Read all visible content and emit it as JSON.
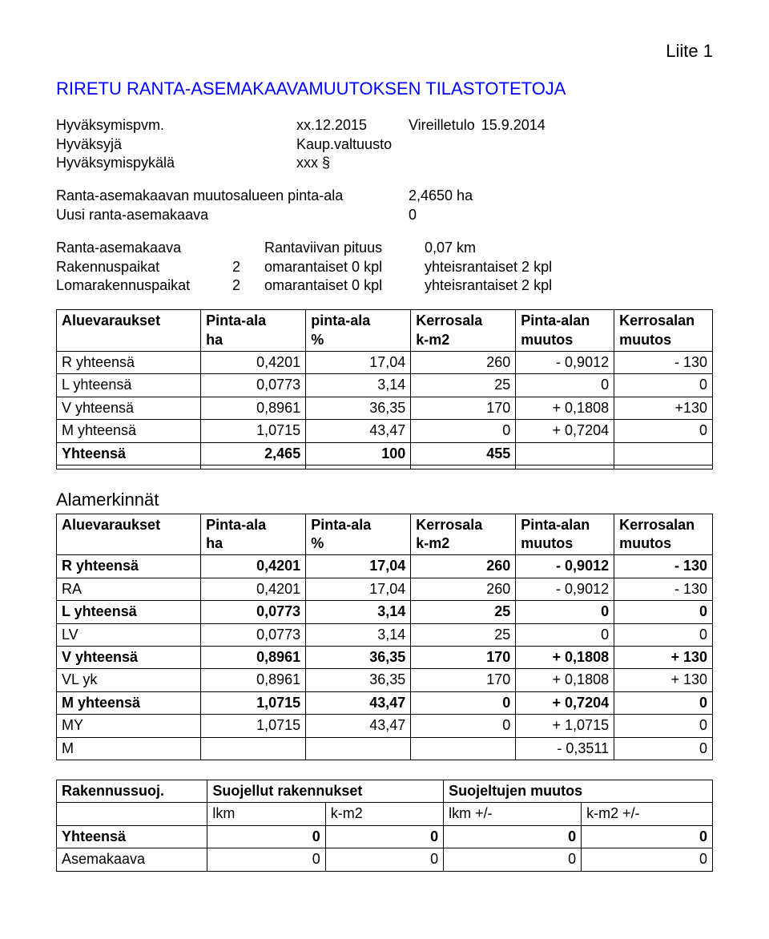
{
  "liite": "Liite 1",
  "title": "RIRETU RANTA-ASEMAKAAVAMUUTOKSEN TILASTOTETOJA",
  "header": {
    "row1": {
      "label": "Hyväksymispvm.",
      "value": "xx.12.2015",
      "extra_label": "Vireilletulo",
      "extra_value": "15.9.2014"
    },
    "row2": {
      "label": "Hyväksyjä",
      "value": "Kaup.valtuusto"
    },
    "row3": {
      "label": "Hyväksymispykälä",
      "value": "xxx §"
    }
  },
  "areas": {
    "row1": {
      "label": "Ranta-asemakaavan muutosalueen pinta-ala",
      "value": "2,4650 ha"
    },
    "row2": {
      "label": "Uusi ranta-asemakaava",
      "value": "0"
    }
  },
  "details": {
    "row1": {
      "c1": "Ranta-asemakaava",
      "c2": "",
      "c3": "Rantaviivan pituus",
      "c4": "0,07 km"
    },
    "row2": {
      "c1": "Rakennuspaikat",
      "c2": "2",
      "c3": "omarantaiset 0 kpl",
      "c4": "yhteisrantaiset 2 kpl"
    },
    "row3": {
      "c1": "Lomarakennuspaikat",
      "c2": "2",
      "c3": "omarantaiset 0 kpl",
      "c4": "yhteisrantaiset 2 kpl"
    }
  },
  "table1": {
    "head": [
      "Aluevaraukset",
      "Pinta-ala\nha",
      "pinta-ala\n%",
      "Kerrosala\nk-m2",
      "Pinta-alan\nmuutos",
      "Kerrosalan\nmuutos"
    ],
    "rows": [
      [
        "R yhteensä",
        "0,4201",
        "17,04",
        "260",
        "- 0,9012",
        "- 130"
      ],
      [
        "L yhteensä",
        "0,0773",
        "3,14",
        "25",
        "0",
        "0"
      ],
      [
        "V yhteensä",
        "0,8961",
        "36,35",
        "170",
        "+ 0,1808",
        "+130"
      ],
      [
        "M yhteensä",
        "1,0715",
        "43,47",
        "0",
        "+ 0,7204",
        "0"
      ],
      [
        "Yhteensä",
        "2,465",
        "100",
        "455",
        "",
        ""
      ],
      [
        "",
        "",
        "",
        "",
        "",
        ""
      ]
    ],
    "bold_rows": [
      4
    ]
  },
  "section_label": "Alamerkinnät",
  "table2": {
    "head": [
      "Aluevaraukset",
      "Pinta-ala\nha",
      "Pinta-ala\n%",
      "Kerrosala\nk-m2",
      "Pinta-alan\nmuutos",
      "Kerrosalan\nmuutos"
    ],
    "rows": [
      [
        "R yhteensä",
        "0,4201",
        "17,04",
        "260",
        "- 0,9012",
        "- 130"
      ],
      [
        "RA",
        "0,4201",
        "17,04",
        "260",
        "- 0,9012",
        "- 130"
      ],
      [
        "L yhteensä",
        "0,0773",
        "3,14",
        "25",
        "0",
        "0"
      ],
      [
        "LV",
        "0,0773",
        "3,14",
        "25",
        "0",
        "0"
      ],
      [
        "V yhteensä",
        "0,8961",
        "36,35",
        "170",
        "+ 0,1808",
        "+ 130"
      ],
      [
        "VL yk",
        "0,8961",
        "36,35",
        "170",
        "+ 0,1808",
        "+ 130"
      ],
      [
        "M yhteensä",
        "1,0715",
        "43,47",
        "0",
        "+ 0,7204",
        "0"
      ],
      [
        "MY",
        "1,0715",
        "43,47",
        "0",
        "+ 1,0715",
        "0"
      ],
      [
        "M",
        "",
        "",
        "",
        "- 0,3511",
        "0"
      ]
    ],
    "bold_rows": [
      0,
      2,
      4,
      6
    ]
  },
  "table3": {
    "head_top": [
      "Rakennussuoj.",
      "Suojellut rakennukset",
      "Suojeltujen muutos"
    ],
    "head_sub": [
      "",
      "lkm",
      "k-m2",
      "lkm  +/-",
      "k-m2 +/-"
    ],
    "rows": [
      [
        "Yhteensä",
        "0",
        "0",
        "0",
        "0"
      ],
      [
        "Asemakaava",
        "0",
        "0",
        "0",
        "0"
      ]
    ],
    "bold_rows": [
      0
    ]
  }
}
